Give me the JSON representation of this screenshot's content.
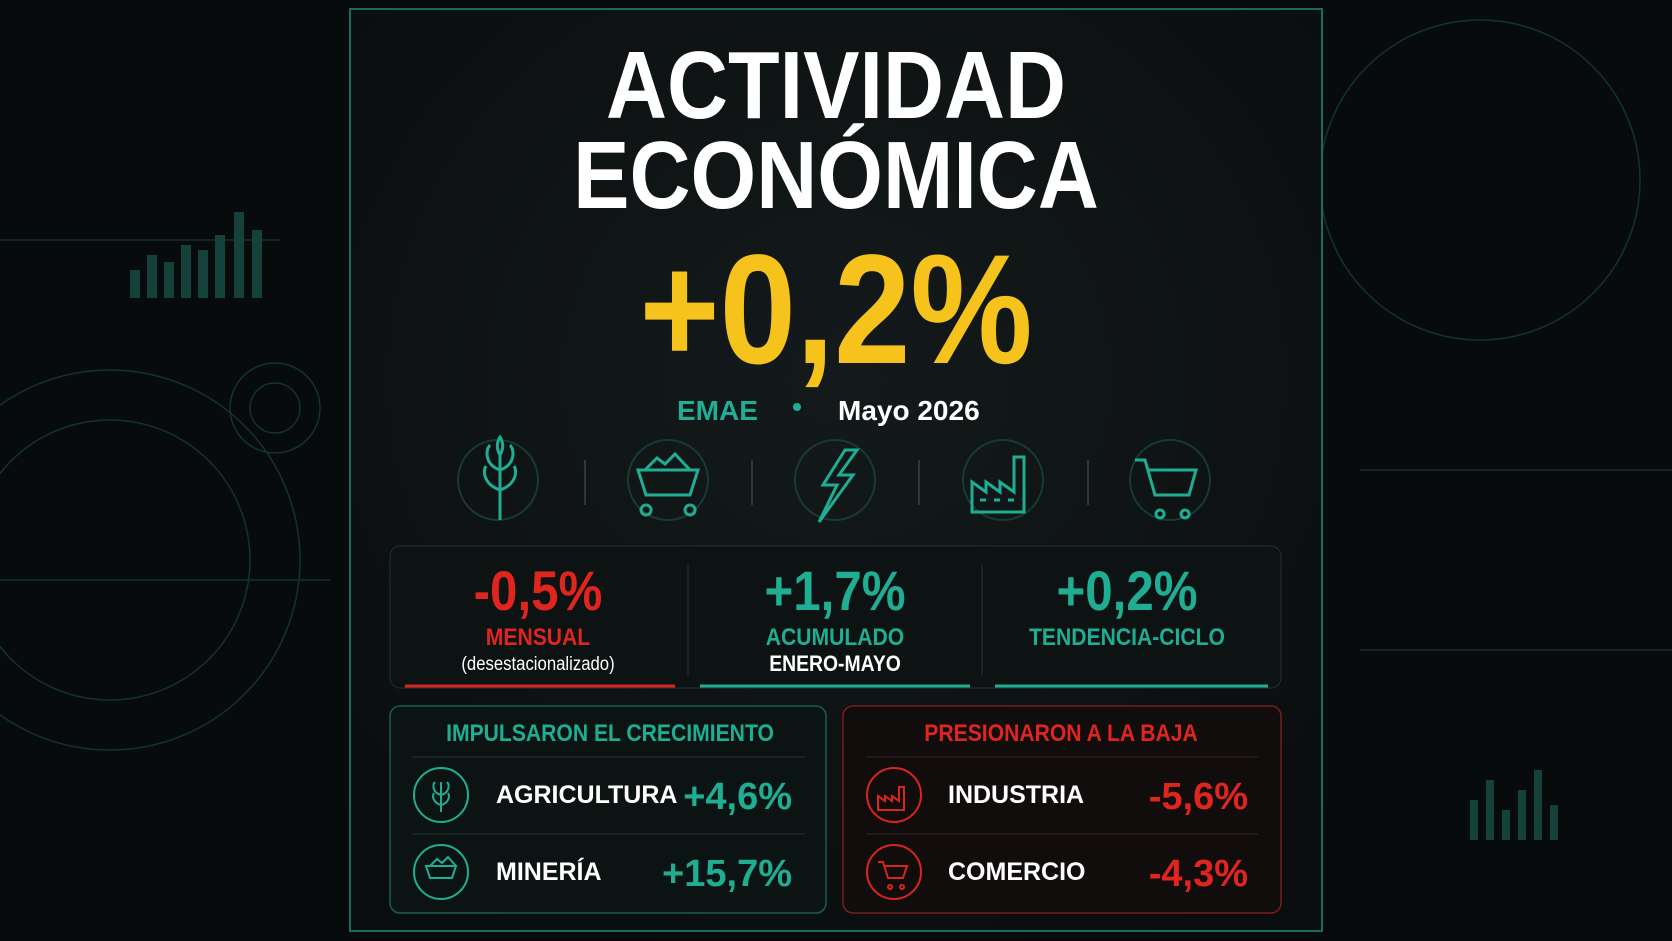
{
  "title": {
    "line1": "ACTIVIDAD",
    "line2": "ECONÓMICA"
  },
  "headline": "+0,2%",
  "subtitle": {
    "source": "EMAE",
    "period": "Mayo 2026"
  },
  "stats": [
    {
      "value": "-0,5%",
      "label": "MENSUAL",
      "note": "(desestacionalizado)"
    },
    {
      "value": "+1,7%",
      "label": "ACUMULADO",
      "note": "ENERO-MAYO"
    },
    {
      "value": "+0,2%",
      "label": "TENDENCIA-CICLO"
    }
  ],
  "drivers": {
    "up": {
      "title": "IMPULSARON EL CRECIMIENTO",
      "items": [
        {
          "name": "AGRICULTURA",
          "value": "+4,6%"
        },
        {
          "name": "MINERÍA",
          "value": "+15,7%"
        }
      ]
    },
    "down": {
      "title": "PRESIONARON A LA BAJA",
      "items": [
        {
          "name": "INDUSTRIA",
          "value": "-5,6%"
        },
        {
          "name": "COMERCIO",
          "value": "-4,3%"
        }
      ]
    }
  }
}
